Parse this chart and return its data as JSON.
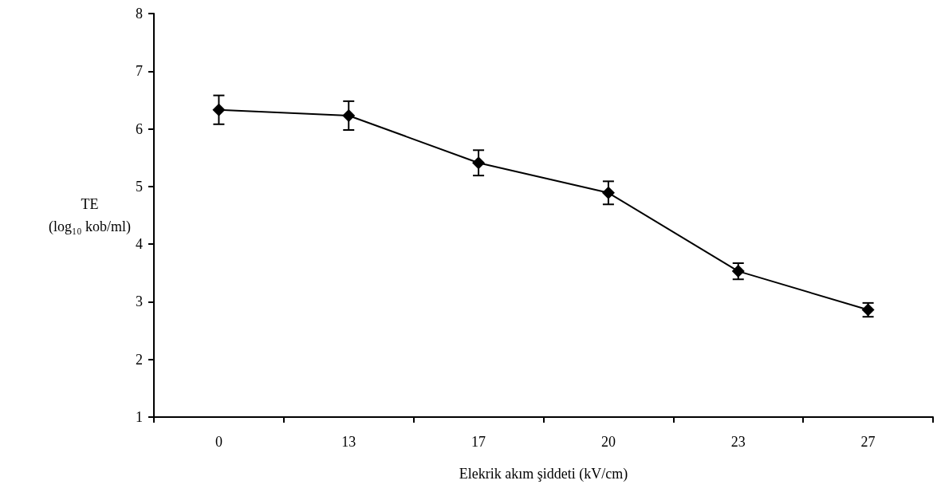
{
  "chart_data": {
    "type": "line",
    "xlabel": "Elekrik akım şiddeti (kV/cm)",
    "ylabel": "TE\n(log₁₀ kob/ml)",
    "categories": [
      "0",
      "13",
      "17",
      "20",
      "23",
      "27"
    ],
    "series": [
      {
        "color": "#000000",
        "values": [
          6.33,
          6.23,
          5.41,
          4.89,
          3.53,
          2.86
        ],
        "errors": [
          0.25,
          0.25,
          0.22,
          0.2,
          0.14,
          0.12
        ]
      }
    ],
    "ylim": [
      1,
      8
    ],
    "yticks": [
      1,
      2,
      3,
      4,
      5,
      6,
      7,
      8
    ],
    "grid": false,
    "marker": "diamond",
    "line_style": "solid"
  }
}
